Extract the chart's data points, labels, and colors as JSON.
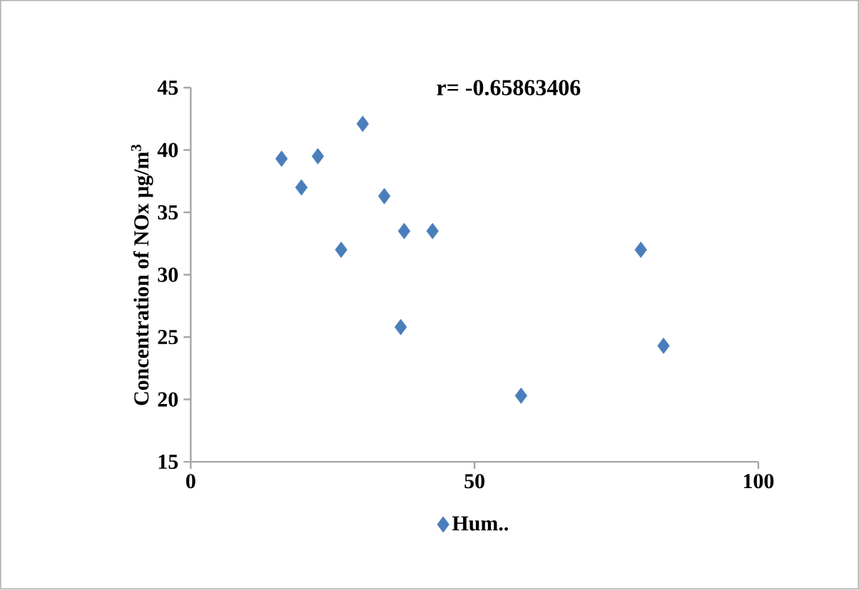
{
  "chart_data": {
    "type": "scatter",
    "xlabel": null,
    "ylabel": "Concentration of  NOx μg/m$^{3}$",
    "annotations": [
      "r= -0.65863406"
    ],
    "series": [
      {
        "name": "Hum..",
        "color": "#4a7ebb",
        "x": [
          16.0,
          19.5,
          22.4,
          30.3,
          26.5,
          34.1,
          37.6,
          42.6,
          37.0,
          58.2,
          79.3,
          83.3
        ],
        "values": [
          39.3,
          37.0,
          39.5,
          42.1,
          32.0,
          36.3,
          33.5,
          33.5,
          25.8,
          20.3,
          32.0,
          24.3
        ]
      }
    ],
    "xlim": [
      0,
      100
    ],
    "xticks": [
      0,
      50,
      100
    ],
    "ylim": [
      15,
      45
    ],
    "yticks": [
      15,
      20,
      25,
      30,
      35,
      40,
      45
    ],
    "grid": false,
    "legend": "bottom",
    "marker": "diamond"
  }
}
